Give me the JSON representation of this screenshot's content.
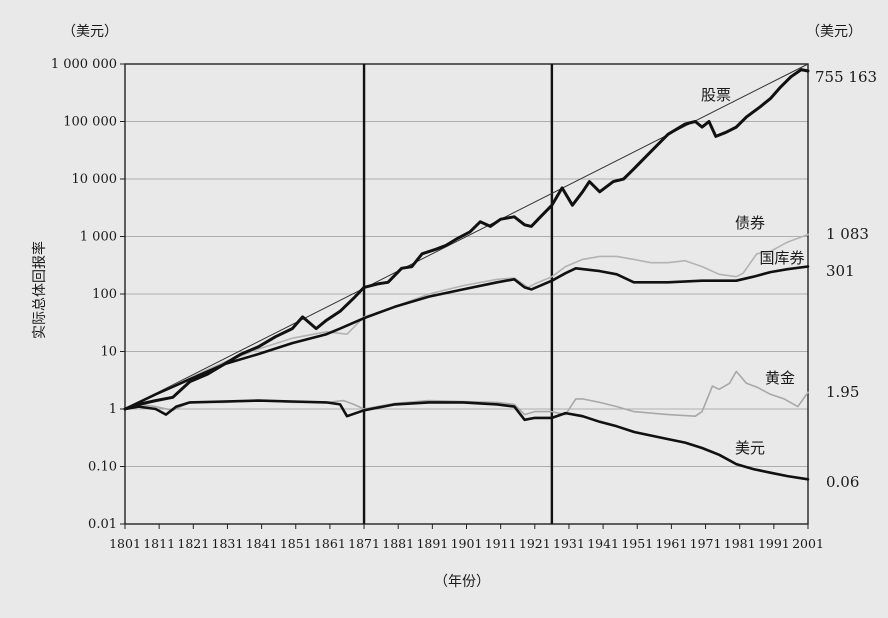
{
  "chart_data": {
    "type": "line",
    "y_scale": "log",
    "ylim": [
      0.01,
      1000000
    ],
    "xlim": [
      1801,
      2001
    ],
    "unit_left": "（美元）",
    "unit_right": "（美元）",
    "ylabel": "实际总体回报率",
    "xlabel": "（年份）",
    "y_ticks": [
      {
        "value": 1000000,
        "label": "1 000 000"
      },
      {
        "value": 100000,
        "label": "100 000"
      },
      {
        "value": 10000,
        "label": "10 000"
      },
      {
        "value": 1000,
        "label": "1 000"
      },
      {
        "value": 100,
        "label": "100"
      },
      {
        "value": 10,
        "label": "10"
      },
      {
        "value": 1,
        "label": "1"
      },
      {
        "value": 0.1,
        "label": "0.10"
      },
      {
        "value": 0.01,
        "label": "0.01"
      }
    ],
    "x_ticks": [
      "1801",
      "1811",
      "1821",
      "1831",
      "1841",
      "1851",
      "1861",
      "1871",
      "1881",
      "1891",
      "1901",
      "1911",
      "1921",
      "1931",
      "1941",
      "1951",
      "1961",
      "1971",
      "1981",
      "1991",
      "2001"
    ],
    "vertical_lines": [
      1871,
      1926
    ],
    "trend_line": {
      "x": [
        1801,
        2001
      ],
      "y": [
        1,
        1000000
      ]
    },
    "series": [
      {
        "name": "股票",
        "end_value": "755 163",
        "color": "#111111",
        "width": 3,
        "points": [
          [
            1801,
            1
          ],
          [
            1805,
            1.2
          ],
          [
            1810,
            1.4
          ],
          [
            1815,
            1.6
          ],
          [
            1820,
            3
          ],
          [
            1825,
            4
          ],
          [
            1830,
            6
          ],
          [
            1835,
            9
          ],
          [
            1840,
            12
          ],
          [
            1845,
            18
          ],
          [
            1850,
            25
          ],
          [
            1853,
            40
          ],
          [
            1857,
            25
          ],
          [
            1860,
            35
          ],
          [
            1864,
            50
          ],
          [
            1868,
            85
          ],
          [
            1871,
            130
          ],
          [
            1875,
            150
          ],
          [
            1878,
            160
          ],
          [
            1882,
            280
          ],
          [
            1885,
            300
          ],
          [
            1888,
            500
          ],
          [
            1892,
            600
          ],
          [
            1895,
            700
          ],
          [
            1898,
            900
          ],
          [
            1902,
            1200
          ],
          [
            1905,
            1800
          ],
          [
            1908,
            1500
          ],
          [
            1911,
            2000
          ],
          [
            1915,
            2200
          ],
          [
            1918,
            1600
          ],
          [
            1920,
            1500
          ],
          [
            1922,
            2000
          ],
          [
            1926,
            3500
          ],
          [
            1929,
            7000
          ],
          [
            1932,
            3500
          ],
          [
            1935,
            6000
          ],
          [
            1937,
            9000
          ],
          [
            1940,
            6000
          ],
          [
            1944,
            9000
          ],
          [
            1947,
            10000
          ],
          [
            1950,
            15000
          ],
          [
            1955,
            30000
          ],
          [
            1960,
            60000
          ],
          [
            1965,
            90000
          ],
          [
            1968,
            100000
          ],
          [
            1970,
            80000
          ],
          [
            1972,
            100000
          ],
          [
            1974,
            55000
          ],
          [
            1977,
            65000
          ],
          [
            1980,
            80000
          ],
          [
            1983,
            120000
          ],
          [
            1987,
            180000
          ],
          [
            1990,
            250000
          ],
          [
            1993,
            400000
          ],
          [
            1996,
            600000
          ],
          [
            1999,
            800000
          ],
          [
            2001,
            755163
          ]
        ]
      },
      {
        "name": "债券",
        "end_value": "1 083",
        "color": "#b3b3b3",
        "width": 1.6,
        "points": [
          [
            1801,
            1
          ],
          [
            1810,
            1.8
          ],
          [
            1820,
            3.5
          ],
          [
            1830,
            6.5
          ],
          [
            1840,
            11
          ],
          [
            1850,
            17
          ],
          [
            1860,
            22
          ],
          [
            1866,
            20
          ],
          [
            1871,
            40
          ],
          [
            1880,
            60
          ],
          [
            1890,
            100
          ],
          [
            1900,
            140
          ],
          [
            1910,
            180
          ],
          [
            1915,
            190
          ],
          [
            1919,
            130
          ],
          [
            1921,
            150
          ],
          [
            1926,
            200
          ],
          [
            1930,
            300
          ],
          [
            1935,
            400
          ],
          [
            1940,
            450
          ],
          [
            1945,
            450
          ],
          [
            1950,
            400
          ],
          [
            1955,
            350
          ],
          [
            1960,
            350
          ],
          [
            1965,
            380
          ],
          [
            1970,
            300
          ],
          [
            1975,
            220
          ],
          [
            1980,
            200
          ],
          [
            1982,
            230
          ],
          [
            1986,
            500
          ],
          [
            1990,
            550
          ],
          [
            1995,
            800
          ],
          [
            2001,
            1083
          ]
        ]
      },
      {
        "name": "国库券",
        "end_value": "301",
        "color": "#111111",
        "width": 2.6,
        "points": [
          [
            1801,
            1
          ],
          [
            1810,
            1.8
          ],
          [
            1820,
            3.3
          ],
          [
            1830,
            6
          ],
          [
            1840,
            9
          ],
          [
            1850,
            14
          ],
          [
            1860,
            20
          ],
          [
            1864,
            25
          ],
          [
            1871,
            38
          ],
          [
            1880,
            60
          ],
          [
            1890,
            90
          ],
          [
            1900,
            120
          ],
          [
            1910,
            160
          ],
          [
            1915,
            180
          ],
          [
            1918,
            130
          ],
          [
            1920,
            120
          ],
          [
            1926,
            170
          ],
          [
            1930,
            230
          ],
          [
            1933,
            280
          ],
          [
            1940,
            250
          ],
          [
            1945,
            220
          ],
          [
            1950,
            160
          ],
          [
            1960,
            160
          ],
          [
            1970,
            170
          ],
          [
            1980,
            170
          ],
          [
            1985,
            200
          ],
          [
            1990,
            240
          ],
          [
            1995,
            270
          ],
          [
            2001,
            301
          ]
        ]
      },
      {
        "name": "黄金",
        "end_value": "1.95",
        "color": "#a8a8a8",
        "width": 1.6,
        "points": [
          [
            1801,
            1
          ],
          [
            1805,
            1.2
          ],
          [
            1810,
            1.1
          ],
          [
            1815,
            0.95
          ],
          [
            1820,
            1.3
          ],
          [
            1830,
            1.3
          ],
          [
            1840,
            1.4
          ],
          [
            1850,
            1.3
          ],
          [
            1860,
            1.3
          ],
          [
            1865,
            1.4
          ],
          [
            1868,
            1.2
          ],
          [
            1871,
            1
          ],
          [
            1880,
            1.25
          ],
          [
            1890,
            1.4
          ],
          [
            1900,
            1.35
          ],
          [
            1910,
            1.3
          ],
          [
            1915,
            1.2
          ],
          [
            1918,
            0.8
          ],
          [
            1921,
            0.9
          ],
          [
            1926,
            0.9
          ],
          [
            1930,
            0.8
          ],
          [
            1933,
            1.5
          ],
          [
            1935,
            1.5
          ],
          [
            1940,
            1.3
          ],
          [
            1945,
            1.1
          ],
          [
            1950,
            0.9
          ],
          [
            1960,
            0.8
          ],
          [
            1968,
            0.75
          ],
          [
            1970,
            0.9
          ],
          [
            1973,
            2.5
          ],
          [
            1975,
            2.2
          ],
          [
            1978,
            2.8
          ],
          [
            1980,
            4.5
          ],
          [
            1983,
            2.8
          ],
          [
            1986,
            2.4
          ],
          [
            1990,
            1.8
          ],
          [
            1994,
            1.5
          ],
          [
            1998,
            1.1
          ],
          [
            2001,
            1.95
          ]
        ]
      },
      {
        "name": "美元",
        "end_value": "0.06",
        "color": "#111111",
        "width": 2.6,
        "points": [
          [
            1801,
            1
          ],
          [
            1805,
            1.1
          ],
          [
            1810,
            1
          ],
          [
            1813,
            0.8
          ],
          [
            1816,
            1.1
          ],
          [
            1820,
            1.3
          ],
          [
            1830,
            1.35
          ],
          [
            1840,
            1.4
          ],
          [
            1850,
            1.35
          ],
          [
            1860,
            1.3
          ],
          [
            1864,
            1.2
          ],
          [
            1866,
            0.75
          ],
          [
            1871,
            0.95
          ],
          [
            1880,
            1.2
          ],
          [
            1890,
            1.3
          ],
          [
            1900,
            1.3
          ],
          [
            1910,
            1.2
          ],
          [
            1915,
            1.1
          ],
          [
            1918,
            0.65
          ],
          [
            1921,
            0.7
          ],
          [
            1926,
            0.7
          ],
          [
            1930,
            0.85
          ],
          [
            1935,
            0.75
          ],
          [
            1940,
            0.6
          ],
          [
            1945,
            0.5
          ],
          [
            1950,
            0.4
          ],
          [
            1960,
            0.3
          ],
          [
            1965,
            0.26
          ],
          [
            1970,
            0.21
          ],
          [
            1975,
            0.16
          ],
          [
            1980,
            0.11
          ],
          [
            1985,
            0.09
          ],
          [
            1990,
            0.078
          ],
          [
            1995,
            0.068
          ],
          [
            2001,
            0.06
          ]
        ]
      }
    ]
  }
}
